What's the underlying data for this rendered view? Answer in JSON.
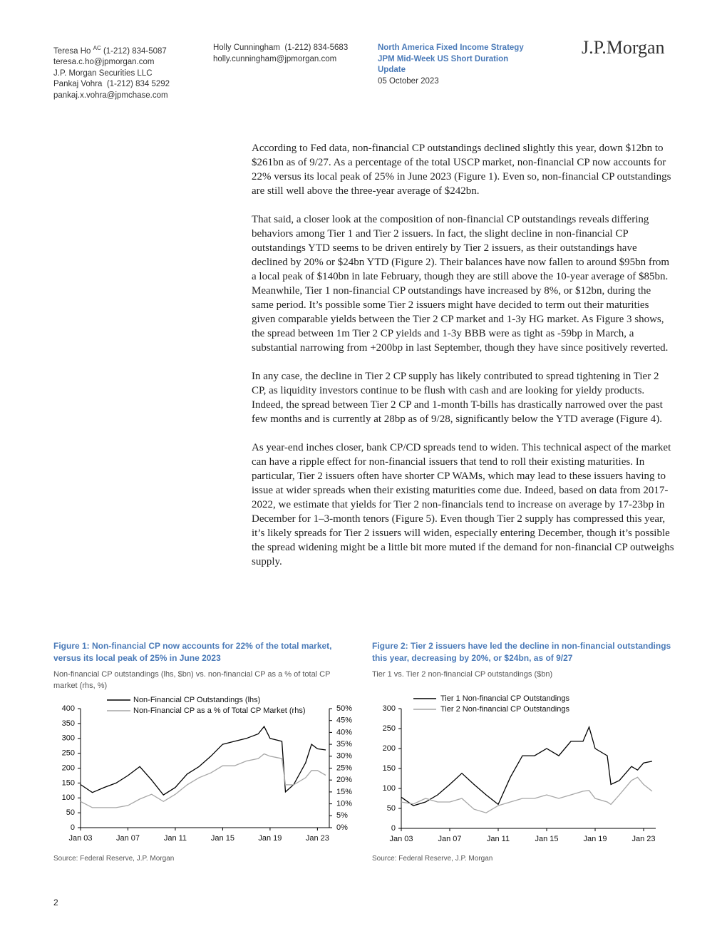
{
  "header": {
    "authors": [
      {
        "name": "Teresa Ho",
        "mark": "AC",
        "phone": "(1-212) 834-5087",
        "email": "teresa.c.ho@jpmorgan.com",
        "firm": "J.P. Morgan Securities LLC"
      },
      {
        "name": "Pankaj Vohra",
        "phone": "(1-212) 834 5292",
        "email": "pankaj.x.vohra@jpmchase.com"
      },
      {
        "name": "Holly Cunningham",
        "phone": "(1-212) 834-5683",
        "email": "holly.cunningham@jpmorgan.com"
      }
    ],
    "publication": "North America Fixed Income Strategy",
    "report": "JPM Mid-Week US Short Duration Update",
    "date": "05 October 2023",
    "logo": "J.P.Morgan"
  },
  "body": [
    "According to Fed data, non-financial CP outstandings declined slightly this year, down $12bn to $261bn as of 9/27. As a percentage of the total USCP market, non-financial CP now accounts for 22% versus its local peak of 25% in June 2023 (Figure 1). Even so, non-financial CP outstandings are still well above the three-year average of $242bn.",
    "That said, a closer look at the composition of non-financial CP outstandings reveals differing behaviors among Tier 1 and Tier 2 issuers. In fact, the slight decline in non-financial CP outstandings YTD seems to be driven entirely by Tier 2 issuers, as their outstandings have declined by 20% or $24bn YTD (Figure 2). Their balances have now fallen to around $95bn from a local peak of $140bn in late February, though they are still above the 10-year average of $85bn. Meanwhile, Tier 1 non-financial CP outstandings have increased by 8%, or $12bn, during the same period. It’s possible some Tier 2 issuers might have decided to term out their maturities given comparable yields between the Tier 2 CP market and 1-3y HG market. As Figure 3 shows, the spread between 1m Tier 2 CP yields and 1-3y BBB were as tight as -59bp in March, a substantial narrowing from +200bp in last September, though they have since positively reverted.",
    "In any case, the decline in Tier 2 CP supply has likely contributed to spread tightening in Tier 2 CP, as liquidity investors continue to be flush with cash and are looking for yieldy products. Indeed, the spread between Tier 2 CP and 1-month T-bills has drastically narrowed over the past few months and is currently at 28bp as of 9/28, significantly below the YTD average (Figure 4).",
    "As year-end inches closer, bank CP/CD spreads tend to widen. This technical aspect of the market can have a ripple effect for non-financial issuers that tend to roll their existing maturities. In particular, Tier 2 issuers often have shorter CP WAMs, which may lead to these issuers having to issue at wider spreads when their existing maturities come due. Indeed, based on data from 2017-2022, we estimate that yields for Tier 2 non-financials tend to increase on average by 17-23bp in December for 1–3-month tenors (Figure 5). Even though Tier 2 supply has compressed this year, it’s likely spreads for Tier 2 issuers will widen, especially entering December, though it’s possible the spread widening might be a little bit more muted if the demand for non-financial CP outweighs supply."
  ],
  "chart_data": [
    {
      "type": "line",
      "title": "Figure 1: Non-financial CP now accounts for 22% of the total market, versus its local peak of 25% in June 2023",
      "subtitle": "Non-financial CP outstandings (lhs, $bn) vs. non-financial CP as a % of total CP market (rhs, %)",
      "source": "Source: Federal Reserve, J.P. Morgan",
      "x": [
        2003,
        2004,
        2005,
        2006,
        2007,
        2008,
        2009,
        2010,
        2011,
        2012,
        2013,
        2014,
        2015,
        2016,
        2017,
        2018,
        2018.5,
        2019,
        2020,
        2020.3,
        2021,
        2022,
        2022.5,
        2023,
        2023.7
      ],
      "xlim": [
        2003,
        2024
      ],
      "xticks": [
        {
          "value": 2003,
          "label": "Jan 03"
        },
        {
          "value": 2007,
          "label": "Jan 07"
        },
        {
          "value": 2011,
          "label": "Jan 11"
        },
        {
          "value": 2015,
          "label": "Jan 15"
        },
        {
          "value": 2019,
          "label": "Jan 19"
        },
        {
          "value": 2023,
          "label": "Jan 23"
        }
      ],
      "ylim": [
        0,
        400
      ],
      "yticks": [
        0,
        50,
        100,
        150,
        200,
        250,
        300,
        350,
        400
      ],
      "y2lim": [
        0,
        50
      ],
      "y2ticks": [
        {
          "value": 0,
          "label": "0%"
        },
        {
          "value": 5,
          "label": "5%"
        },
        {
          "value": 10,
          "label": "10%"
        },
        {
          "value": 15,
          "label": "15%"
        },
        {
          "value": 20,
          "label": "20%"
        },
        {
          "value": 25,
          "label": "25%"
        },
        {
          "value": 30,
          "label": "30%"
        },
        {
          "value": 35,
          "label": "35%"
        },
        {
          "value": 40,
          "label": "40%"
        },
        {
          "value": 45,
          "label": "45%"
        },
        {
          "value": 50,
          "label": "50%"
        }
      ],
      "series": [
        {
          "name": "Non-Financial CP Outstandings (lhs)",
          "color": "#000000",
          "values": [
            145,
            118,
            135,
            150,
            175,
            205,
            160,
            110,
            135,
            180,
            205,
            240,
            280,
            290,
            300,
            315,
            340,
            300,
            290,
            120,
            145,
            218,
            280,
            265,
            261
          ]
        },
        {
          "name": "Non-Financial CP as a % of Total CP Market (rhs)",
          "color": "#a6a6a6",
          "axis": "y2",
          "values": [
            11,
            8.4,
            8.4,
            8.4,
            9.3,
            12,
            14,
            11,
            14,
            18,
            21,
            23,
            26,
            26,
            28,
            29,
            31,
            30,
            29,
            18,
            18,
            21,
            24,
            24,
            22
          ]
        }
      ]
    },
    {
      "type": "line",
      "title": "Figure 2: Tier 2 issuers have led the decline in non-financial outstandings this year, decreasing by 20%, or $24bn, as of 9/27",
      "subtitle": "Tier 1 vs. Tier 2 non-financial CP outstandings ($bn)",
      "source": "Source: Federal Reserve, J.P. Morgan",
      "x": [
        2003,
        2004,
        2005,
        2006,
        2007,
        2008,
        2009,
        2010,
        2011,
        2012,
        2013,
        2014,
        2015,
        2016,
        2017,
        2018,
        2018.5,
        2019,
        2020,
        2020.3,
        2021,
        2022,
        2022.5,
        2023,
        2023.7
      ],
      "xlim": [
        2003,
        2024
      ],
      "xticks": [
        {
          "value": 2003,
          "label": "Jan 03"
        },
        {
          "value": 2007,
          "label": "Jan 07"
        },
        {
          "value": 2011,
          "label": "Jan 11"
        },
        {
          "value": 2015,
          "label": "Jan 15"
        },
        {
          "value": 2019,
          "label": "Jan 19"
        },
        {
          "value": 2023,
          "label": "Jan 23"
        }
      ],
      "ylim": [
        0,
        300
      ],
      "yticks": [
        0,
        50,
        100,
        150,
        200,
        250,
        300
      ],
      "series": [
        {
          "name": "Tier 1 Non-financial CP Outstandings",
          "color": "#000000",
          "values": [
            78,
            57,
            66,
            84,
            110,
            138,
            110,
            84,
            60,
            128,
            182,
            182,
            200,
            182,
            218,
            218,
            254,
            200,
            182,
            110,
            120,
            155,
            146,
            164,
            168
          ]
        },
        {
          "name": "Tier 2 Non-financial CP Outstandings",
          "color": "#a6a6a6",
          "values": [
            66,
            61,
            75,
            66,
            66,
            75,
            48,
            39,
            57,
            66,
            75,
            75,
            84,
            75,
            84,
            93,
            95,
            75,
            66,
            60,
            84,
            120,
            128,
            110,
            93
          ]
        }
      ]
    }
  ],
  "page_number": "2"
}
